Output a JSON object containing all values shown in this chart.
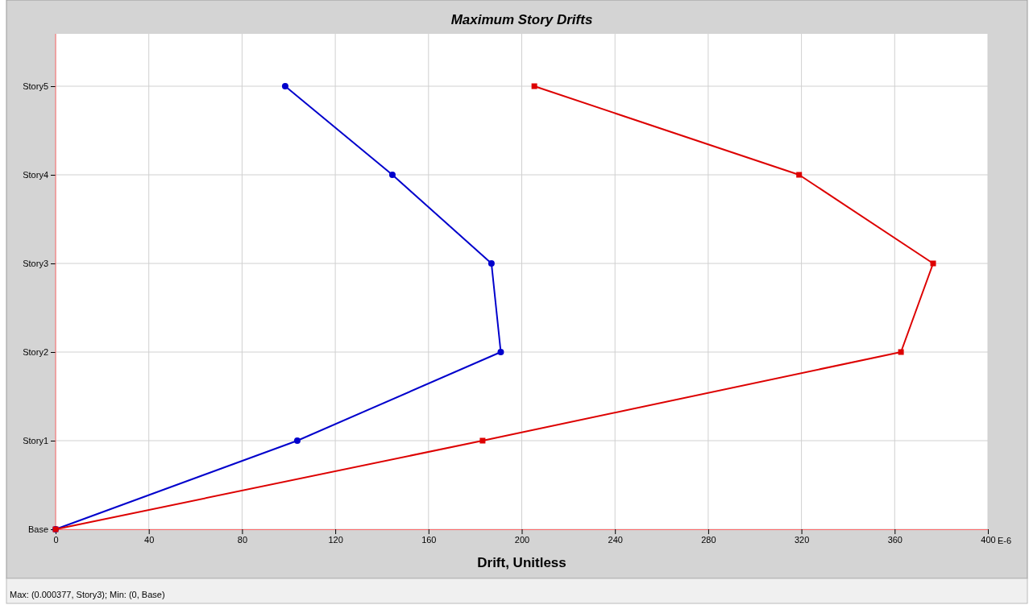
{
  "chart_data": {
    "type": "line",
    "title": "Maximum Story Drifts",
    "xlabel": "Drift, Unitless",
    "orientation": "horizontal",
    "categories": [
      "Story5",
      "Story4",
      "Story3",
      "Story2",
      "Story1",
      "Base"
    ],
    "series": [
      {
        "color": "#0000cc",
        "marker": "circle",
        "values": [
          98.5,
          144.5,
          187,
          191,
          103.7,
          0
        ]
      },
      {
        "color": "#dd0000",
        "marker": "square",
        "values": [
          205.4,
          319,
          376.5,
          362.7,
          183.2,
          0
        ]
      }
    ],
    "xlim": [
      0,
      400
    ],
    "xticks": [
      0,
      40,
      80,
      120,
      160,
      200,
      240,
      280,
      320,
      360,
      400
    ],
    "grid": true,
    "annotations": [
      "E-6",
      "Max: (0.000377, Story3);  Min: (0, Base)"
    ]
  }
}
